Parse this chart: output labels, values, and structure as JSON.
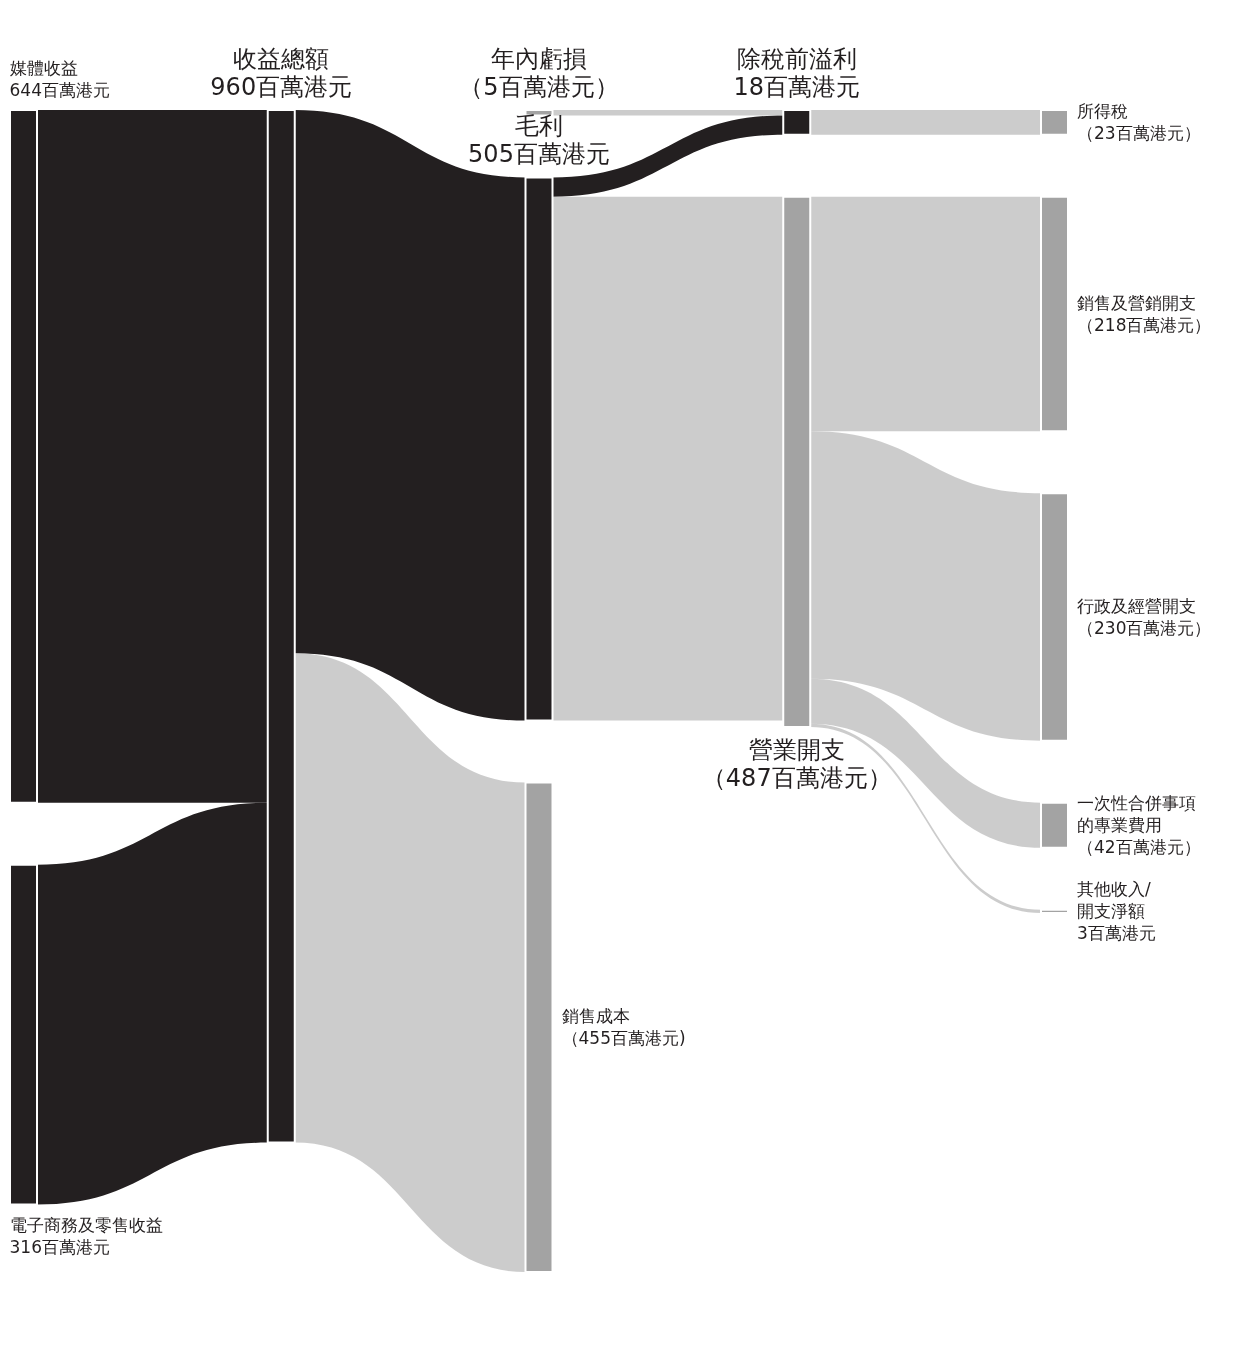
{
  "chart_data": {
    "type": "other",
    "categories": [
      "媒體收益",
      "電子商務及零售收益",
      "收益總額",
      "毛利",
      "銷售成本",
      "年內虧損",
      "除稅前溢利",
      "營業開支",
      "所得稅",
      "銷售及營銷開支",
      "行政及經營開支",
      "一次性合併事項的專業費用",
      "其他收入/開支淨額"
    ],
    "values": [
      644,
      316,
      960,
      505,
      455,
      5,
      18,
      487,
      23,
      218,
      230,
      42,
      3
    ],
    "value_labels": [
      "644百萬港元",
      "316百萬港元",
      "960百萬港元",
      "505百萬港元",
      "（455百萬港元)",
      "（5百萬港元）",
      "18百萬港元",
      "（487百萬港元）",
      "（23百萬港元）",
      "（218百萬港元）",
      "（230百萬港元）",
      "（42百萬港元）",
      "3百萬港元"
    ],
    "colors": [
      "#231f20",
      "#231f20",
      "#231f20",
      "#231f20",
      "#a3a3a3",
      "#a3a3a3",
      "#231f20",
      "#a3a3a3",
      "#a3a3a3",
      "#a3a3a3",
      "#a3a3a3",
      "#a3a3a3",
      "#a3a3a3"
    ]
  }
}
